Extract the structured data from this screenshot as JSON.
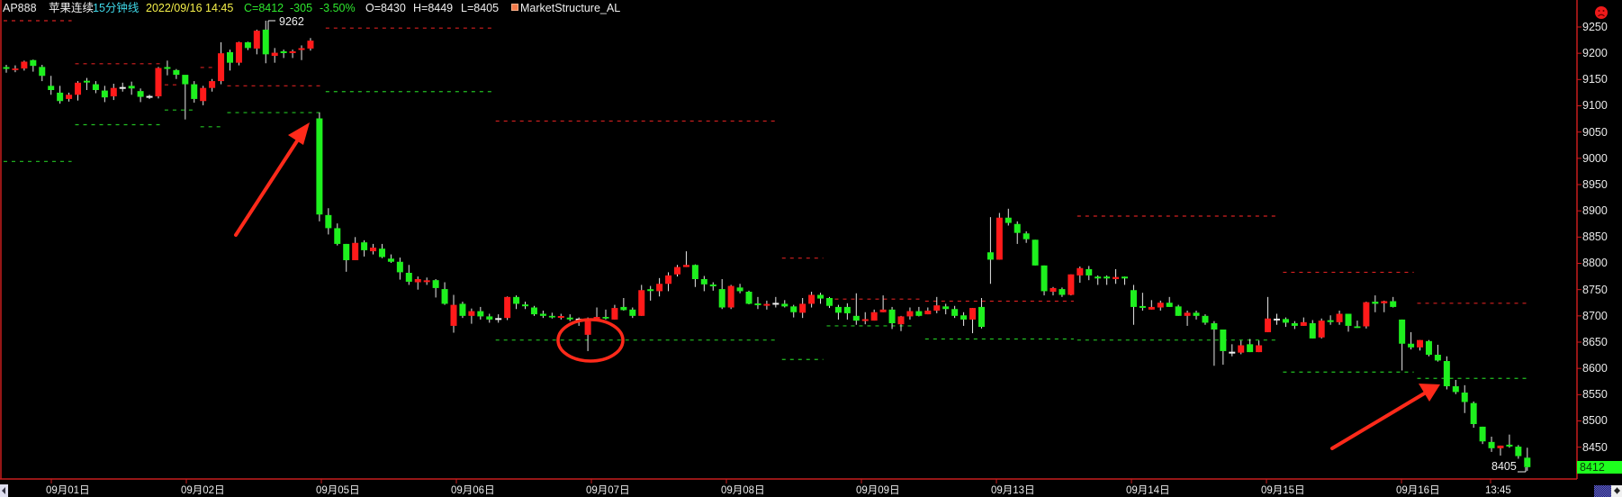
{
  "header": {
    "symbol": "AP888",
    "name": "苹果连续",
    "period": "15分钟线",
    "datetime": "2022/09/16 14:45",
    "close": "C=8412",
    "change": "-305",
    "change_pct": "-3.50%",
    "open": "O=8430",
    "high": "H=8449",
    "low": "L=8405",
    "indicator": "MarketStructure_AL"
  },
  "colors": {
    "up": "#ff1a1a",
    "down": "#1ef01e",
    "doji": "#f0f0f0",
    "axis": "#c81e1e",
    "resistance": "#d42020",
    "support": "#22c022"
  },
  "status_icon": "sad-face-icon",
  "current_price_label": "8412",
  "high_marker": "9262",
  "low_marker": "8405",
  "chart_data": {
    "type": "candlestick",
    "ylim": [
      8390,
      9270
    ],
    "y_ticks": [
      "9250",
      "9200",
      "9150",
      "9100",
      "9050",
      "9000",
      "8950",
      "8900",
      "8850",
      "8800",
      "8750",
      "8700",
      "8650",
      "8600",
      "8550",
      "8500",
      "8450"
    ],
    "x_labels": [
      "09月01日",
      "09月02日",
      "09月05日",
      "09月06日",
      "09月07日",
      "09月08日",
      "09月09日",
      "09月13日",
      "09月14日",
      "09月15日",
      "09月16日",
      "13:45"
    ],
    "ohlc": [
      [
        9172,
        9178,
        9163,
        9171
      ],
      [
        9168,
        9177,
        9164,
        9171
      ],
      [
        9171,
        9186,
        9167,
        9184
      ],
      [
        9187,
        9188,
        9165,
        9176
      ],
      [
        9174,
        9178,
        9147,
        9157
      ],
      [
        9138,
        9157,
        9121,
        9130
      ],
      [
        9125,
        9138,
        9104,
        9109
      ],
      [
        9113,
        9125,
        9108,
        9121
      ],
      [
        9121,
        9147,
        9110,
        9144
      ],
      [
        9146,
        9153,
        9130,
        9145
      ],
      [
        9141,
        9147,
        9124,
        9130
      ],
      [
        9129,
        9138,
        9107,
        9116
      ],
      [
        9118,
        9142,
        9111,
        9134
      ],
      [
        9134,
        9144,
        9127,
        9134
      ],
      [
        9138,
        9146,
        9121,
        9133
      ],
      [
        9128,
        9133,
        9107,
        9117
      ],
      [
        9117,
        9121,
        9113,
        9117
      ],
      [
        9118,
        9174,
        9114,
        9172
      ],
      [
        9172,
        9186,
        9158,
        9170
      ],
      [
        9168,
        9170,
        9151,
        9159
      ],
      [
        9159,
        9157,
        9074,
        9141
      ],
      [
        9141,
        9147,
        9106,
        9113
      ],
      [
        9109,
        9138,
        9101,
        9134
      ],
      [
        9134,
        9151,
        9127,
        9147
      ],
      [
        9147,
        9221,
        9141,
        9200
      ],
      [
        9202,
        9207,
        9167,
        9182
      ],
      [
        9182,
        9222,
        9177,
        9221
      ],
      [
        9221,
        9222,
        9206,
        9210
      ],
      [
        9209,
        9245,
        9198,
        9243
      ],
      [
        9245,
        9262,
        9181,
        9198
      ],
      [
        9195,
        9210,
        9182,
        9201
      ],
      [
        9202,
        9207,
        9191,
        9200
      ],
      [
        9200,
        9207,
        9191,
        9202
      ],
      [
        9206,
        9215,
        9187,
        9208
      ],
      [
        9209,
        9229,
        9205,
        9224
      ],
      [
        9076,
        9087,
        8880,
        8893
      ],
      [
        8892,
        8905,
        8855,
        8867
      ],
      [
        8867,
        8876,
        8834,
        8837
      ],
      [
        8837,
        8837,
        8784,
        8806
      ],
      [
        8806,
        8850,
        8806,
        8839
      ],
      [
        8840,
        8844,
        8813,
        8825
      ],
      [
        8823,
        8837,
        8817,
        8830
      ],
      [
        8828,
        8837,
        8810,
        8812
      ],
      [
        8809,
        8817,
        8801,
        8803
      ],
      [
        8803,
        8811,
        8769,
        8783
      ],
      [
        8782,
        8797,
        8759,
        8765
      ],
      [
        8764,
        8775,
        8750,
        8770
      ],
      [
        8765,
        8773,
        8759,
        8766
      ],
      [
        8768,
        8770,
        8735,
        8753
      ],
      [
        8751,
        8764,
        8721,
        8723
      ],
      [
        8681,
        8740,
        8668,
        8721
      ],
      [
        8723,
        8727,
        8696,
        8700
      ],
      [
        8700,
        8714,
        8685,
        8709
      ],
      [
        8709,
        8717,
        8693,
        8699
      ],
      [
        8699,
        8704,
        8687,
        8693
      ],
      [
        8694,
        8703,
        8687,
        8694
      ],
      [
        8696,
        8737,
        8692,
        8736
      ],
      [
        8736,
        8739,
        8713,
        8723
      ],
      [
        8720,
        8727,
        8713,
        8718
      ],
      [
        8716,
        8719,
        8700,
        8703
      ],
      [
        8704,
        8710,
        8696,
        8700
      ],
      [
        8700,
        8706,
        8695,
        8697
      ],
      [
        8697,
        8704,
        8693,
        8698
      ],
      [
        8695,
        8703,
        8690,
        8694
      ],
      [
        8693,
        8697,
        8681,
        8693
      ],
      [
        8664,
        8697,
        8633,
        8690
      ],
      [
        8693,
        8716,
        8693,
        8698
      ],
      [
        8698,
        8712,
        8693,
        8695
      ],
      [
        8693,
        8721,
        8693,
        8715
      ],
      [
        8717,
        8734,
        8710,
        8711
      ],
      [
        8712,
        8716,
        8696,
        8700
      ],
      [
        8700,
        8759,
        8700,
        8749
      ],
      [
        8749,
        8757,
        8729,
        8748
      ],
      [
        8747,
        8772,
        8737,
        8761
      ],
      [
        8761,
        8783,
        8747,
        8777
      ],
      [
        8779,
        8797,
        8775,
        8793
      ],
      [
        8793,
        8823,
        8793,
        8797
      ],
      [
        8797,
        8798,
        8755,
        8770
      ],
      [
        8770,
        8776,
        8747,
        8760
      ],
      [
        8758,
        8764,
        8748,
        8756
      ],
      [
        8751,
        8770,
        8713,
        8716
      ],
      [
        8716,
        8759,
        8713,
        8757
      ],
      [
        8754,
        8761,
        8743,
        8747
      ],
      [
        8746,
        8748,
        8722,
        8723
      ],
      [
        8722,
        8736,
        8713,
        8720
      ],
      [
        8720,
        8729,
        8712,
        8721
      ],
      [
        8723,
        8736,
        8716,
        8723
      ],
      [
        8723,
        8730,
        8716,
        8718
      ],
      [
        8718,
        8721,
        8697,
        8707
      ],
      [
        8706,
        8734,
        8696,
        8723
      ],
      [
        8723,
        8746,
        8716,
        8740
      ],
      [
        8740,
        8744,
        8723,
        8733
      ],
      [
        8734,
        8736,
        8715,
        8719
      ],
      [
        8717,
        8721,
        8693,
        8706
      ],
      [
        8717,
        8724,
        8693,
        8705
      ],
      [
        8700,
        8743,
        8683,
        8691
      ],
      [
        8690,
        8707,
        8684,
        8692
      ],
      [
        8691,
        8712,
        8691,
        8707
      ],
      [
        8707,
        8739,
        8707,
        8712
      ],
      [
        8712,
        8717,
        8675,
        8686
      ],
      [
        8684,
        8700,
        8671,
        8699
      ],
      [
        8699,
        8716,
        8693,
        8709
      ],
      [
        8709,
        8717,
        8699,
        8700
      ],
      [
        8703,
        8716,
        8703,
        8710
      ],
      [
        8710,
        8736,
        8705,
        8720
      ],
      [
        8718,
        8723,
        8703,
        8713
      ],
      [
        8713,
        8719,
        8696,
        8700
      ],
      [
        8701,
        8707,
        8681,
        8693
      ],
      [
        8693,
        8715,
        8667,
        8715
      ],
      [
        8717,
        8734,
        8676,
        8679
      ],
      [
        8821,
        8888,
        8761,
        8807
      ],
      [
        8807,
        8896,
        8807,
        8887
      ],
      [
        8887,
        8904,
        8872,
        8877
      ],
      [
        8875,
        8880,
        8837,
        8858
      ],
      [
        8857,
        8861,
        8839,
        8846
      ],
      [
        8845,
        8845,
        8796,
        8796
      ],
      [
        8796,
        8796,
        8739,
        8747
      ],
      [
        8746,
        8755,
        8739,
        8753
      ],
      [
        8751,
        8754,
        8736,
        8740
      ],
      [
        8740,
        8779,
        8739,
        8779
      ],
      [
        8777,
        8794,
        8763,
        8791
      ],
      [
        8789,
        8795,
        8768,
        8777
      ],
      [
        8773,
        8777,
        8759,
        8772
      ],
      [
        8773,
        8777,
        8759,
        8771
      ],
      [
        8770,
        8789,
        8761,
        8774
      ],
      [
        8773,
        8775,
        8759,
        8771
      ],
      [
        8749,
        8759,
        8683,
        8717
      ],
      [
        8717,
        8744,
        8710,
        8715
      ],
      [
        8712,
        8730,
        8712,
        8717
      ],
      [
        8716,
        8729,
        8710,
        8725
      ],
      [
        8725,
        8736,
        8717,
        8717
      ],
      [
        8718,
        8721,
        8700,
        8700
      ],
      [
        8700,
        8710,
        8681,
        8706
      ],
      [
        8706,
        8710,
        8693,
        8700
      ],
      [
        8700,
        8703,
        8683,
        8687
      ],
      [
        8686,
        8690,
        8605,
        8674
      ],
      [
        8674,
        8674,
        8607,
        8633
      ],
      [
        8630,
        8646,
        8623,
        8630
      ],
      [
        8630,
        8653,
        8627,
        8644
      ],
      [
        8646,
        8656,
        8631,
        8631
      ],
      [
        8631,
        8653,
        8631,
        8644
      ],
      [
        8669,
        8736,
        8669,
        8695
      ],
      [
        8693,
        8704,
        8683,
        8693
      ],
      [
        8694,
        8697,
        8679,
        8687
      ],
      [
        8686,
        8690,
        8675,
        8681
      ],
      [
        8681,
        8697,
        8681,
        8688
      ],
      [
        8686,
        8692,
        8657,
        8657
      ],
      [
        8659,
        8695,
        8657,
        8691
      ],
      [
        8690,
        8701,
        8683,
        8689
      ],
      [
        8688,
        8710,
        8683,
        8704
      ],
      [
        8704,
        8704,
        8670,
        8681
      ],
      [
        8680,
        8691,
        8677,
        8677
      ],
      [
        8680,
        8727,
        8676,
        8726
      ],
      [
        8727,
        8739,
        8707,
        8723
      ],
      [
        8724,
        8729,
        8707,
        8728
      ],
      [
        8728,
        8736,
        8716,
        8717
      ],
      [
        8693,
        8693,
        8596,
        8647
      ],
      [
        8647,
        8669,
        8636,
        8640
      ],
      [
        8640,
        8654,
        8634,
        8654
      ],
      [
        8652,
        8654,
        8623,
        8626
      ],
      [
        8626,
        8645,
        8613,
        8615
      ],
      [
        8614,
        8623,
        8560,
        8566
      ],
      [
        8566,
        8578,
        8551,
        8555
      ],
      [
        8554,
        8568,
        8515,
        8536
      ],
      [
        8534,
        8537,
        8487,
        8494
      ],
      [
        8489,
        8489,
        8456,
        8461
      ],
      [
        8460,
        8470,
        8441,
        8448
      ],
      [
        8448,
        8453,
        8434,
        8453
      ],
      [
        8453,
        8474,
        8449,
        8452
      ],
      [
        8451,
        8454,
        8428,
        8433
      ],
      [
        8430,
        8449,
        8405,
        8412
      ]
    ],
    "structure_lines": [
      {
        "color": "red",
        "price": 9262,
        "bars": [
          0,
          7
        ]
      },
      {
        "color": "green",
        "price": 8994,
        "bars": [
          0,
          7
        ]
      },
      {
        "color": "red",
        "price": 9180,
        "bars": [
          8,
          17
        ]
      },
      {
        "color": "green",
        "price": 9064,
        "bars": [
          8,
          17
        ]
      },
      {
        "color": "red",
        "price": 9140,
        "bars": [
          18,
          19
        ]
      },
      {
        "color": "green",
        "price": 9092,
        "bars": [
          18,
          21
        ]
      },
      {
        "color": "red",
        "price": 9173,
        "bars": [
          22,
          23
        ]
      },
      {
        "color": "green",
        "price": 9060,
        "bars": [
          22,
          24
        ]
      },
      {
        "color": "red",
        "price": 9138,
        "bars": [
          25,
          35
        ]
      },
      {
        "color": "green",
        "price": 9087,
        "bars": [
          25,
          35
        ]
      },
      {
        "color": "red",
        "price": 9248,
        "bars": [
          36,
          54
        ]
      },
      {
        "color": "green",
        "price": 9127,
        "bars": [
          36,
          54
        ]
      },
      {
        "color": "red",
        "price": 9071,
        "bars": [
          55,
          86
        ]
      },
      {
        "color": "green",
        "price": 8654,
        "bars": [
          55,
          86
        ]
      },
      {
        "color": "red",
        "price": 8810,
        "bars": [
          87,
          91
        ]
      },
      {
        "color": "green",
        "price": 8617,
        "bars": [
          87,
          91
        ]
      },
      {
        "color": "red",
        "price": 8732,
        "bars": [
          92,
          102
        ]
      },
      {
        "color": "green",
        "price": 8681,
        "bars": [
          92,
          101
        ]
      },
      {
        "color": "red",
        "price": 8728,
        "bars": [
          103,
          119
        ]
      },
      {
        "color": "green",
        "price": 8656,
        "bars": [
          103,
          119
        ]
      },
      {
        "color": "red",
        "price": 8890,
        "bars": [
          120,
          142
        ]
      },
      {
        "color": "green",
        "price": 8654,
        "bars": [
          120,
          142
        ]
      },
      {
        "color": "red",
        "price": 8783,
        "bars": [
          143,
          157
        ]
      },
      {
        "color": "green",
        "price": 8593,
        "bars": [
          143,
          157
        ]
      },
      {
        "color": "red",
        "price": 8724,
        "bars": [
          158,
          170
        ]
      },
      {
        "color": "green",
        "price": 8581,
        "bars": [
          158,
          170
        ]
      }
    ]
  }
}
